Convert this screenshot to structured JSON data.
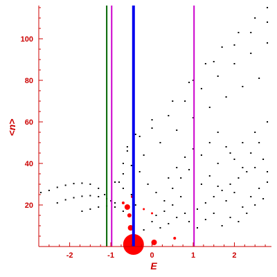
{
  "chart_data": {
    "type": "scatter",
    "title": "",
    "xlabel": "E",
    "ylabel": "<n>",
    "xlim": [
      -2.75,
      2.9
    ],
    "ylim": [
      0,
      116
    ],
    "x_ticks": [
      -2,
      -1,
      0,
      1,
      2
    ],
    "y_ticks": [
      20,
      40,
      60,
      80,
      100
    ],
    "grid": false,
    "legend": "none",
    "vertical_lines": [
      {
        "x": -1.1,
        "color": "#006400"
      },
      {
        "x": -0.98,
        "color": "#cc00cc"
      },
      {
        "x": -0.45,
        "color": "#0000ee"
      },
      {
        "x": 1.02,
        "color": "#cc00cc"
      }
    ],
    "band_points": [
      {
        "x": -2.7,
        "y": 26
      },
      {
        "x": -2.5,
        "y": 27
      },
      {
        "x": -2.3,
        "y": 28.5
      },
      {
        "x": -2.1,
        "y": 29.5
      },
      {
        "x": -1.9,
        "y": 30.3
      },
      {
        "x": -1.7,
        "y": 30.5
      },
      {
        "x": -1.5,
        "y": 30
      },
      {
        "x": -1.3,
        "y": 28
      },
      {
        "x": -1.15,
        "y": 25
      },
      {
        "x": -1.0,
        "y": 22
      },
      {
        "x": -2.3,
        "y": 21
      },
      {
        "x": -2.1,
        "y": 22.5
      },
      {
        "x": -1.9,
        "y": 23.5
      },
      {
        "x": -1.7,
        "y": 24.2
      },
      {
        "x": -1.5,
        "y": 24.5
      },
      {
        "x": -1.3,
        "y": 24
      },
      {
        "x": -1.1,
        "y": 23
      },
      {
        "x": -0.9,
        "y": 21
      },
      {
        "x": -1.7,
        "y": 17
      },
      {
        "x": -1.5,
        "y": 18
      },
      {
        "x": -1.3,
        "y": 19
      },
      {
        "x": -1.1,
        "y": 19.5
      },
      {
        "x": -0.9,
        "y": 19
      },
      {
        "x": -0.7,
        "y": 17
      },
      {
        "x": -0.9,
        "y": 31
      },
      {
        "x": -0.7,
        "y": 35
      },
      {
        "x": -0.5,
        "y": 39
      },
      {
        "x": -0.2,
        "y": 44
      },
      {
        "x": 0.2,
        "y": 50
      },
      {
        "x": 0.6,
        "y": 56
      },
      {
        "x": 1.0,
        "y": 62
      },
      {
        "x": 1.4,
        "y": 67
      },
      {
        "x": 1.8,
        "y": 72
      },
      {
        "x": 2.2,
        "y": 77
      },
      {
        "x": 2.6,
        "y": 81
      },
      {
        "x": -0.6,
        "y": 48
      },
      {
        "x": -0.3,
        "y": 53
      },
      {
        "x": 0.0,
        "y": 57
      },
      {
        "x": 0.4,
        "y": 63
      },
      {
        "x": 0.8,
        "y": 70
      },
      {
        "x": 1.2,
        "y": 76
      },
      {
        "x": 1.6,
        "y": 82
      },
      {
        "x": 2.0,
        "y": 88
      },
      {
        "x": 2.4,
        "y": 93
      },
      {
        "x": 2.8,
        "y": 98
      },
      {
        "x": -0.4,
        "y": 54
      },
      {
        "x": 0.0,
        "y": 61
      },
      {
        "x": 0.5,
        "y": 70
      },
      {
        "x": 1.0,
        "y": 80
      },
      {
        "x": 1.5,
        "y": 89
      },
      {
        "x": 2.0,
        "y": 97
      },
      {
        "x": 2.4,
        "y": 103
      },
      {
        "x": 2.8,
        "y": 108
      },
      {
        "x": 0.9,
        "y": 79
      },
      {
        "x": 1.3,
        "y": 88
      },
      {
        "x": 1.7,
        "y": 96
      },
      {
        "x": 2.1,
        "y": 103
      },
      {
        "x": 2.5,
        "y": 110
      },
      {
        "x": 2.8,
        "y": 115
      },
      {
        "x": 1.6,
        "y": 40
      },
      {
        "x": 1.9,
        "y": 45
      },
      {
        "x": 2.2,
        "y": 50
      },
      {
        "x": 2.5,
        "y": 55
      },
      {
        "x": 2.8,
        "y": 60
      }
    ],
    "scattered_points": [
      {
        "x": -0.7,
        "y": 40
      },
      {
        "x": -0.6,
        "y": 46
      },
      {
        "x": -0.3,
        "y": 36
      },
      {
        "x": -0.1,
        "y": 30
      },
      {
        "x": 0.1,
        "y": 26
      },
      {
        "x": 0.3,
        "y": 22
      },
      {
        "x": 0.0,
        "y": 12
      },
      {
        "x": 0.2,
        "y": 9
      },
      {
        "x": 0.4,
        "y": 11
      },
      {
        "x": 0.6,
        "y": 14
      },
      {
        "x": 0.8,
        "y": 16
      },
      {
        "x": 1.1,
        "y": 18
      },
      {
        "x": 1.3,
        "y": 21
      },
      {
        "x": 1.5,
        "y": 24
      },
      {
        "x": 1.7,
        "y": 27
      },
      {
        "x": 1.9,
        "y": 30
      },
      {
        "x": 2.1,
        "y": 33
      },
      {
        "x": 2.3,
        "y": 36
      },
      {
        "x": 2.5,
        "y": 38
      },
      {
        "x": 2.7,
        "y": 42
      },
      {
        "x": 0.5,
        "y": 28
      },
      {
        "x": 0.7,
        "y": 33
      },
      {
        "x": 0.9,
        "y": 37
      },
      {
        "x": 1.2,
        "y": 30
      },
      {
        "x": 1.4,
        "y": 34
      },
      {
        "x": 1.6,
        "y": 29
      },
      {
        "x": 1.8,
        "y": 22
      },
      {
        "x": 2.0,
        "y": 26
      },
      {
        "x": 2.2,
        "y": 19
      },
      {
        "x": 2.4,
        "y": 24
      },
      {
        "x": 2.6,
        "y": 28
      },
      {
        "x": 2.8,
        "y": 31
      },
      {
        "x": 0.3,
        "y": 17
      },
      {
        "x": 0.5,
        "y": 20
      },
      {
        "x": 0.7,
        "y": 24
      },
      {
        "x": 0.9,
        "y": 12
      },
      {
        "x": 1.1,
        "y": 9
      },
      {
        "x": 1.3,
        "y": 13
      },
      {
        "x": 1.5,
        "y": 16
      },
      {
        "x": 1.7,
        "y": 10
      },
      {
        "x": 1.9,
        "y": 14
      },
      {
        "x": 2.1,
        "y": 12
      },
      {
        "x": 2.3,
        "y": 16
      },
      {
        "x": 2.5,
        "y": 20
      },
      {
        "x": 2.7,
        "y": 23
      },
      {
        "x": -0.2,
        "y": 8
      },
      {
        "x": 0.1,
        "y": 15
      },
      {
        "x": -0.4,
        "y": 20
      },
      {
        "x": -0.7,
        "y": 28
      },
      {
        "x": -0.5,
        "y": 25
      },
      {
        "x": -0.8,
        "y": 31
      },
      {
        "x": 0.4,
        "y": 33
      },
      {
        "x": 0.6,
        "y": 38
      },
      {
        "x": 0.8,
        "y": 43
      },
      {
        "x": 1.0,
        "y": 47
      },
      {
        "x": 1.2,
        "y": 44
      },
      {
        "x": 1.4,
        "y": 50
      },
      {
        "x": 1.6,
        "y": 55
      },
      {
        "x": 1.8,
        "y": 48
      },
      {
        "x": 2.0,
        "y": 42
      },
      {
        "x": 2.2,
        "y": 38
      },
      {
        "x": 2.4,
        "y": 45
      },
      {
        "x": 2.6,
        "y": 50
      },
      {
        "x": 2.8,
        "y": 36
      }
    ],
    "red_points": [
      {
        "x": -0.45,
        "y": 1,
        "r": 15
      },
      {
        "x": 0.05,
        "y": 2,
        "r": 4
      },
      {
        "x": -0.52,
        "y": 9,
        "r": 4
      },
      {
        "x": -0.55,
        "y": 15,
        "r": 3
      },
      {
        "x": -0.6,
        "y": 19,
        "r": 4
      },
      {
        "x": -0.7,
        "y": 21,
        "r": 2
      },
      {
        "x": -0.48,
        "y": 24,
        "r": 2
      },
      {
        "x": 0.55,
        "y": 4,
        "r": 2
      },
      {
        "x": -0.2,
        "y": 18,
        "r": 1.5
      },
      {
        "x": 0.0,
        "y": 16,
        "r": 1.5
      }
    ]
  }
}
